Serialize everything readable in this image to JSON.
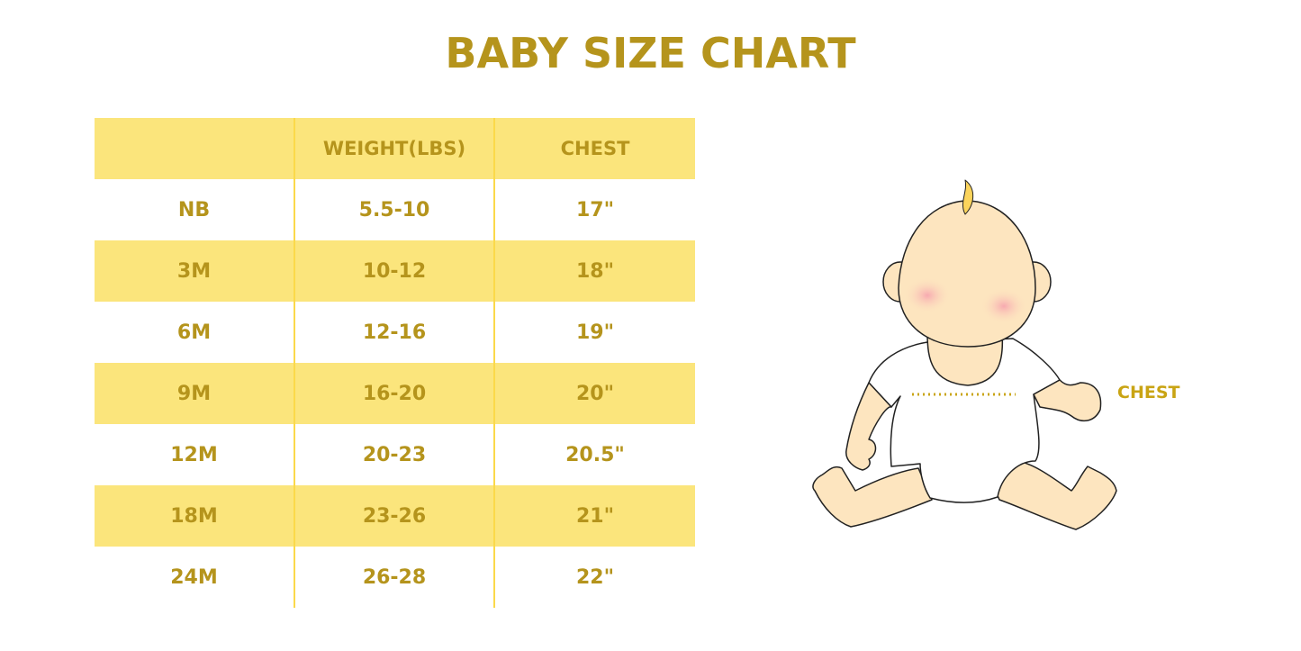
{
  "title": "BABY SIZE CHART",
  "table": {
    "headers": [
      "",
      "WEIGHT(LBS)",
      "CHEST"
    ],
    "rows": [
      [
        "NB",
        "5.5-10",
        "17\""
      ],
      [
        "3M",
        "10-12",
        "18\""
      ],
      [
        "6M",
        "12-16",
        "19\""
      ],
      [
        "9M",
        "16-20",
        "20\""
      ],
      [
        "12M",
        "20-23",
        "20.5\""
      ],
      [
        "18M",
        "23-26",
        "21\""
      ],
      [
        "24M",
        "26-28",
        "22\""
      ]
    ]
  },
  "illustration": {
    "chest_label": "CHEST"
  },
  "colors": {
    "accent": "#b5941c",
    "stripe": "#fbe57c",
    "skin": "#fde5bf"
  }
}
